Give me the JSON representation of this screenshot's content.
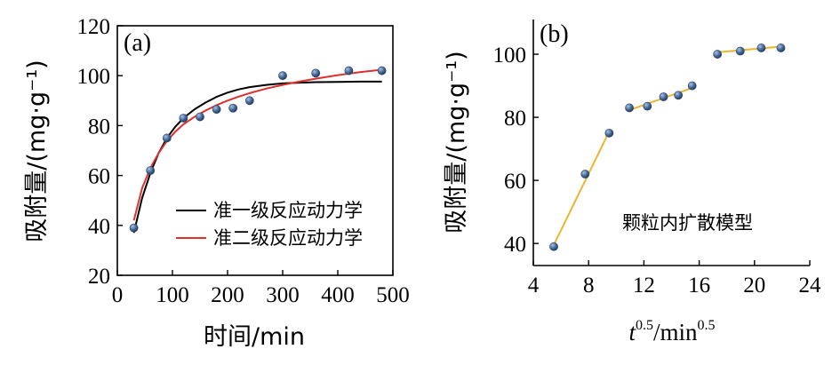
{
  "chart_data": [
    {
      "panel_label": "(a)",
      "type": "scatter",
      "xlabel": "时间/min",
      "ylabel": "吸附量/(mg·g⁻¹)",
      "xlim": [
        0,
        500
      ],
      "ylim": [
        20,
        120
      ],
      "xticks": [
        0,
        100,
        200,
        300,
        400,
        500
      ],
      "yticks": [
        20,
        40,
        60,
        80,
        100,
        120
      ],
      "points": {
        "x": [
          30,
          60,
          90,
          120,
          150,
          180,
          210,
          240,
          300,
          360,
          420,
          480
        ],
        "y": [
          39,
          62,
          75,
          83,
          83.5,
          86.5,
          87,
          90,
          100,
          101,
          102,
          102
        ]
      },
      "series": [
        {
          "name": "准一级反应动力学",
          "color": "#000000",
          "x": [
            30,
            45,
            60,
            75,
            90,
            105,
            120,
            140,
            160,
            180,
            200,
            220,
            240,
            270,
            300,
            330,
            360,
            400,
            440,
            480
          ],
          "y": [
            37,
            51,
            61,
            69,
            75,
            79.5,
            83,
            86.5,
            89.2,
            91.5,
            93.2,
            94.5,
            95.4,
            96.3,
            96.9,
            97.2,
            97.4,
            97.5,
            97.6,
            97.6
          ]
        },
        {
          "name": "准二级反应动力学",
          "color": "#e0302e",
          "x": [
            30,
            45,
            60,
            75,
            90,
            105,
            120,
            140,
            160,
            180,
            200,
            220,
            240,
            270,
            300,
            330,
            360,
            400,
            440,
            480
          ],
          "y": [
            42,
            55,
            63,
            69,
            73.8,
            77.5,
            80.5,
            83.5,
            86,
            88.2,
            90,
            91.6,
            93,
            94.8,
            96.3,
            97.6,
            98.8,
            100.2,
            101.4,
            102.4
          ]
        }
      ],
      "legend": "center-right"
    },
    {
      "panel_label": "(b)",
      "type": "scatter",
      "xlabel": {
        "base": "t",
        "sup": "0.5",
        "mid": "/min",
        "sup2": "0.5"
      },
      "ylabel": "吸附量/(mg·g⁻¹)",
      "xlim": [
        4,
        24
      ],
      "ylim": [
        33,
        111
      ],
      "xticks": [
        4,
        8,
        12,
        16,
        20,
        24
      ],
      "yticks": [
        40,
        60,
        80,
        100
      ],
      "annotation": "颗粒内扩散模型",
      "points": {
        "x": [
          5.48,
          7.75,
          9.49,
          10.95,
          12.25,
          13.42,
          14.49,
          15.49,
          17.32,
          18.97,
          20.49,
          21.91
        ],
        "y": [
          39,
          62,
          75,
          83,
          83.5,
          86.5,
          87,
          90,
          100,
          101,
          102,
          102
        ]
      },
      "fit_lines": [
        {
          "x": [
            5.48,
            9.49
          ],
          "y": [
            39.5,
            75.5
          ]
        },
        {
          "x": [
            10.95,
            15.49
          ],
          "y": [
            82.3,
            89.3
          ]
        },
        {
          "x": [
            17.32,
            21.91
          ],
          "y": [
            100.6,
            102.4
          ]
        }
      ],
      "fit_color": "#e8b730"
    }
  ],
  "colors": {
    "marker": "#4a6d9a",
    "marker_edge": "#2e4a72"
  }
}
